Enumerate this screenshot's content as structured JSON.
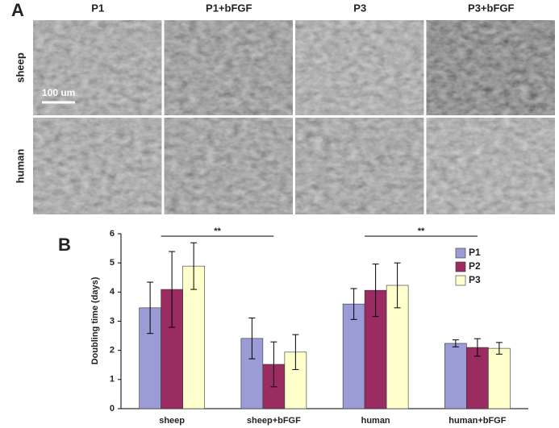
{
  "panel_a": {
    "label": "A",
    "columns": [
      "P1",
      "P1+bFGF",
      "P3",
      "P3+bFGF"
    ],
    "rows": [
      "sheep",
      "human"
    ],
    "scale_bar": "100 um"
  },
  "chart_data": {
    "type": "bar",
    "label": "B",
    "y_label": "Doubling time (days)",
    "categories": [
      "sheep",
      "sheep+bFGF",
      "human",
      "human+bFGF"
    ],
    "series": [
      {
        "name": "P1",
        "color": "#9b9bd6",
        "values": [
          3.46,
          2.41,
          3.59,
          2.24
        ],
        "errors": [
          0.88,
          0.7,
          0.53,
          0.12
        ]
      },
      {
        "name": "P2",
        "color": "#9b2c62",
        "values": [
          4.09,
          1.52,
          4.06,
          2.1
        ],
        "errors": [
          1.3,
          0.77,
          0.9,
          0.3
        ]
      },
      {
        "name": "P3",
        "color": "#ffffcc",
        "values": [
          4.89,
          1.94,
          4.23,
          2.07
        ],
        "errors": [
          0.8,
          0.6,
          0.77,
          0.2
        ]
      }
    ],
    "significance": [
      {
        "label": "**",
        "from": 0,
        "to": 1
      },
      {
        "label": "**",
        "from": 2,
        "to": 3
      }
    ],
    "ylim": [
      0,
      6
    ],
    "yticks": [
      0,
      1,
      2,
      3,
      4,
      5,
      6
    ],
    "legend": "upper right"
  }
}
